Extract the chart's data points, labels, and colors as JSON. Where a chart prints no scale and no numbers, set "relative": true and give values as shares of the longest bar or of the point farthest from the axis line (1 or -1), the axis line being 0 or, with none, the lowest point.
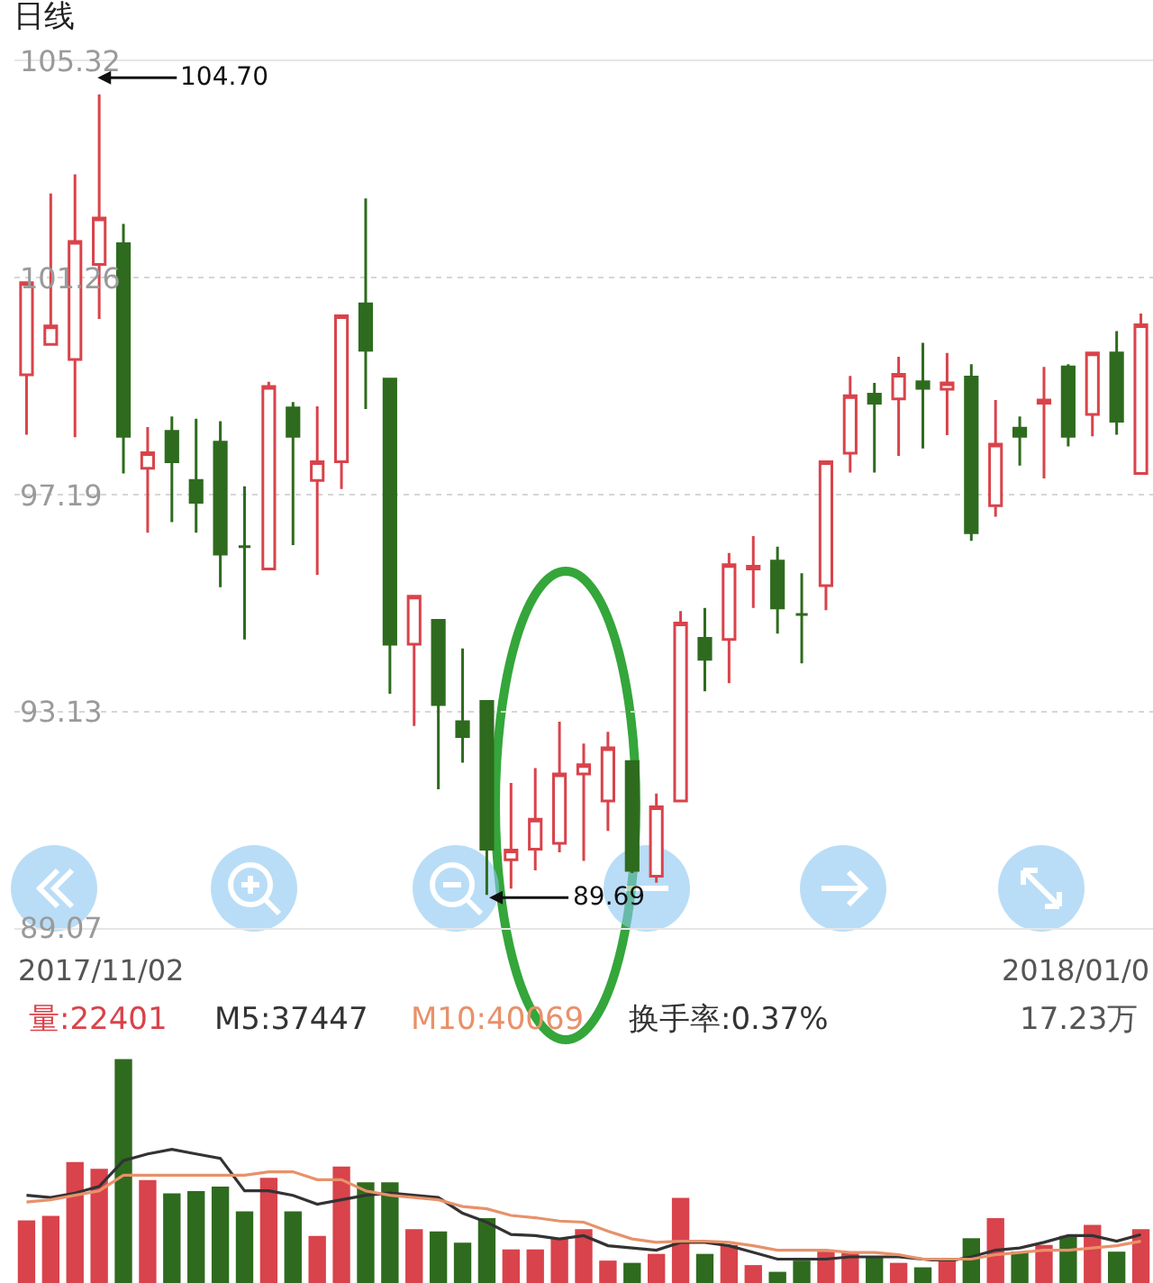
{
  "chart_data": [
    {
      "type": "candlestick",
      "title": "日线",
      "categories": [
        null,
        null,
        null,
        null,
        null,
        null,
        null,
        null,
        null,
        null,
        null,
        null,
        null,
        null,
        null,
        null,
        null,
        null,
        null,
        null,
        null,
        null,
        null,
        null,
        null,
        null,
        null,
        null,
        null,
        null,
        null,
        null,
        null,
        null,
        null,
        null,
        null,
        null,
        null,
        null,
        null,
        null,
        null,
        null,
        null,
        null,
        null
      ],
      "ohlc": [
        [
          99.44,
          101.17,
          98.32,
          101.17
        ],
        [
          100.01,
          102.84,
          100.01,
          100.36
        ],
        [
          99.73,
          103.2,
          98.27,
          101.94
        ],
        [
          101.51,
          104.7,
          100.49,
          102.38
        ],
        [
          101.9,
          102.27,
          97.59,
          98.29
        ],
        [
          97.69,
          98.46,
          96.48,
          97.98
        ],
        [
          98.38,
          98.66,
          96.68,
          97.81
        ],
        [
          97.46,
          98.62,
          96.48,
          97.05
        ],
        [
          98.18,
          98.57,
          95.46,
          96.08
        ],
        [
          96.22,
          97.35,
          94.48,
          96.22
        ],
        [
          95.8,
          99.31,
          95.8,
          99.22
        ],
        [
          98.82,
          98.93,
          96.25,
          98.29
        ],
        [
          97.46,
          98.85,
          95.69,
          97.81
        ],
        [
          97.81,
          100.55,
          97.3,
          100.55
        ],
        [
          100.77,
          102.75,
          98.8,
          99.9
        ],
        [
          99.36,
          99.36,
          93.46,
          94.39
        ],
        [
          94.39,
          95.29,
          92.86,
          95.29
        ],
        [
          94.84,
          94.84,
          91.67,
          93.26
        ],
        [
          92.94,
          94.31,
          92.17,
          92.66
        ],
        [
          93.32,
          93.32,
          89.69,
          90.55
        ],
        [
          90.35,
          91.79,
          89.81,
          90.53
        ],
        [
          90.55,
          92.07,
          90.15,
          91.11
        ],
        [
          90.66,
          92.94,
          90.49,
          91.96
        ],
        [
          91.96,
          92.53,
          90.33,
          92.13
        ],
        [
          91.45,
          92.75,
          90.89,
          92.45
        ],
        [
          92.19,
          92.19,
          90.1,
          90.15
        ],
        [
          90.04,
          91.59,
          89.92,
          91.34
        ],
        [
          91.45,
          95.01,
          91.45,
          94.79
        ],
        [
          94.5,
          95.07,
          93.51,
          94.11
        ],
        [
          94.48,
          96.1,
          93.66,
          95.88
        ],
        [
          95.8,
          96.42,
          95.07,
          95.85
        ],
        [
          95.95,
          96.22,
          94.59,
          95.07
        ],
        [
          94.95,
          95.72,
          94.03,
          94.95
        ],
        [
          95.49,
          97.81,
          95.03,
          97.81
        ],
        [
          97.97,
          99.42,
          97.61,
          99.05
        ],
        [
          99.08,
          99.29,
          97.61,
          98.91
        ],
        [
          98.99,
          99.78,
          97.92,
          99.45
        ],
        [
          99.31,
          100.04,
          98.06,
          99.19
        ],
        [
          99.17,
          99.85,
          98.31,
          99.29
        ],
        [
          99.4,
          99.64,
          96.33,
          96.48
        ],
        [
          96.99,
          98.97,
          96.78,
          98.14
        ],
        [
          98.44,
          98.66,
          97.74,
          98.29
        ],
        [
          98.91,
          99.59,
          97.5,
          98.97
        ],
        [
          99.59,
          99.64,
          98.1,
          98.29
        ],
        [
          98.7,
          99.85,
          98.29,
          99.85
        ],
        [
          99.85,
          100.26,
          98.32,
          98.57
        ],
        [
          97.59,
          100.59,
          97.59,
          100.38
        ]
      ],
      "colors": [
        "#d9434b",
        "#d9434b",
        "#d9434b",
        "#d9434b",
        "#2e6b1e",
        "#d9434b",
        "#2e6b1e",
        "#2e6b1e",
        "#2e6b1e",
        "#2e6b1e",
        "#d9434b",
        "#2e6b1e",
        "#d9434b",
        "#d9434b",
        "#2e6b1e",
        "#2e6b1e",
        "#d9434b",
        "#2e6b1e",
        "#2e6b1e",
        "#2e6b1e",
        "#d9434b",
        "#d9434b",
        "#d9434b",
        "#d9434b",
        "#d9434b",
        "#2e6b1e",
        "#d9434b",
        "#d9434b",
        "#2e6b1e",
        "#d9434b",
        "#d9434b",
        "#2e6b1e",
        "#2e6b1e",
        "#d9434b",
        "#d9434b",
        "#2e6b1e",
        "#d9434b",
        "#2e6b1e",
        "#d9434b",
        "#2e6b1e",
        "#d9434b",
        "#2e6b1e",
        "#d9434b",
        "#2e6b1e",
        "#d9434b",
        "#2e6b1e",
        "#d9434b"
      ],
      "ylim": [
        89.07,
        105.32
      ],
      "yticks": [
        89.07,
        93.13,
        97.19,
        101.26,
        105.32
      ],
      "grid": "y",
      "tick_labels": "y",
      "annotations": [
        "104.70",
        "89.69",
        "2017/11/02",
        "2018/01/0"
      ]
    },
    {
      "type": "bar",
      "relative": true,
      "tick_labels": false,
      "categories": [
        null,
        null,
        null,
        null,
        null,
        null,
        null,
        null,
        null,
        null,
        null,
        null,
        null,
        null,
        null,
        null,
        null,
        null,
        null,
        null,
        null,
        null,
        null,
        null,
        null,
        null,
        null,
        null,
        null,
        null,
        null,
        null,
        null,
        null,
        null,
        null,
        null,
        null,
        null,
        null,
        null,
        null,
        null,
        null,
        null,
        null,
        null
      ],
      "series": [
        {
          "type": "bar",
          "colors": [
            "#d9434b",
            "#d9434b",
            "#d9434b",
            "#d9434b",
            "#2e6b1e",
            "#d9434b",
            "#2e6b1e",
            "#2e6b1e",
            "#2e6b1e",
            "#2e6b1e",
            "#d9434b",
            "#2e6b1e",
            "#d9434b",
            "#d9434b",
            "#2e6b1e",
            "#2e6b1e",
            "#d9434b",
            "#2e6b1e",
            "#2e6b1e",
            "#2e6b1e",
            "#d9434b",
            "#d9434b",
            "#d9434b",
            "#d9434b",
            "#d9434b",
            "#2e6b1e",
            "#d9434b",
            "#d9434b",
            "#2e6b1e",
            "#d9434b",
            "#d9434b",
            "#2e6b1e",
            "#2e6b1e",
            "#d9434b",
            "#d9434b",
            "#2e6b1e",
            "#d9434b",
            "#2e6b1e",
            "#d9434b",
            "#2e6b1e",
            "#d9434b",
            "#2e6b1e",
            "#d9434b",
            "#2e6b1e",
            "#d9434b",
            "#2e6b1e",
            "#d9434b"
          ],
          "values": [
            0.28,
            0.3,
            0.54,
            0.51,
            1,
            0.46,
            0.4,
            0.41,
            0.43,
            0.32,
            0.47,
            0.32,
            0.21,
            0.52,
            0.45,
            0.45,
            0.24,
            0.23,
            0.18,
            0.29,
            0.15,
            0.15,
            0.2,
            0.24,
            0.1,
            0.09,
            0.13,
            0.38,
            0.13,
            0.17,
            0.08,
            0.05,
            0.1,
            0.14,
            0.14,
            0.12,
            0.09,
            0.07,
            0.1,
            0.2,
            0.29,
            0.14,
            0.17,
            0.21,
            0.26,
            0.14,
            0.24
          ]
        }
      ],
      "annotations": [
        "量:22401",
        "M5:37447",
        "M10:40069",
        "换手率:0.37%",
        "17.23万"
      ]
    },
    {
      "type": "line",
      "relative": true,
      "tick_labels": false,
      "categories": [
        null,
        null,
        null,
        null,
        null,
        null,
        null,
        null,
        null,
        null,
        null,
        null,
        null,
        null,
        null,
        null,
        null,
        null,
        null,
        null,
        null,
        null,
        null,
        null,
        null,
        null,
        null,
        null,
        null,
        null,
        null,
        null,
        null,
        null,
        null,
        null,
        null,
        null,
        null,
        null,
        null,
        null,
        null,
        null,
        null,
        null,
        null
      ],
      "series": [
        {
          "color": "#333333",
          "values": [
            0.59,
            0.57,
            0.61,
            0.67,
            0.9,
            0.96,
            1,
            0.96,
            0.92,
            0.63,
            0.63,
            0.59,
            0.51,
            0.55,
            0.59,
            0.61,
            0.59,
            0.57,
            0.43,
            0.35,
            0.24,
            0.23,
            0.2,
            0.23,
            0.14,
            0.12,
            0.1,
            0.17,
            0.17,
            0.14,
            0.08,
            0.02,
            0.02,
            0.02,
            0.04,
            0.04,
            0.04,
            0.02,
            0,
            0.04,
            0.1,
            0.12,
            0.17,
            0.23,
            0.23,
            0.18,
            0.24
          ]
        },
        {
          "color": "#e8916a",
          "values": [
            0.53,
            0.55,
            0.59,
            0.63,
            0.77,
            0.77,
            0.77,
            0.77,
            0.77,
            0.77,
            0.8,
            0.8,
            0.73,
            0.73,
            0.63,
            0.59,
            0.57,
            0.55,
            0.49,
            0.47,
            0.41,
            0.39,
            0.36,
            0.35,
            0.27,
            0.2,
            0.17,
            0.18,
            0.18,
            0.17,
            0.14,
            0.1,
            0.1,
            0.1,
            0.08,
            0.08,
            0.06,
            0.02,
            0.02,
            0.02,
            0.06,
            0.08,
            0.1,
            0.1,
            0.12,
            0.14,
            0.18
          ]
        }
      ]
    }
  ]
}
